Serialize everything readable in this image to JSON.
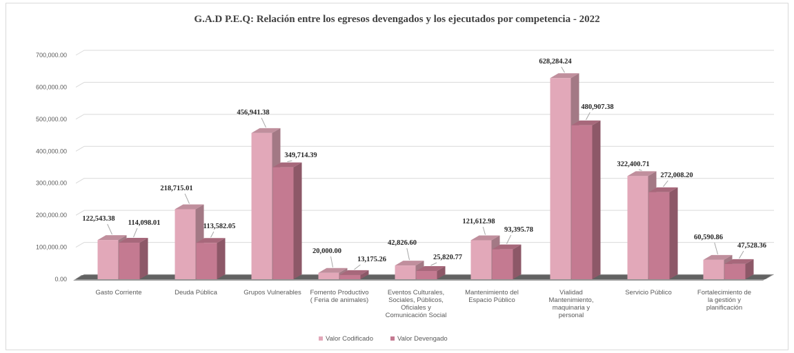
{
  "chart_data": {
    "type": "bar",
    "title": "G.A.D P.E.Q: Relación entre los egresos devengados y los ejecutados por competencia - 2022",
    "categories": [
      "Gasto Corriente",
      "Deuda Pública",
      "Grupos Vulnerables",
      "Fomento Productivo ( Feria de animales)",
      "Eventos Culturales, Sociales, Públicos, Oficiales y Comunicación Social",
      "Mantenimiento del Espacio Público",
      "Vialidad Mantenimiento, maquinaria y personal",
      "Servicio Público",
      "Fortalecimiento de la gestión y planificación"
    ],
    "category_lines": [
      [
        "Gasto Corriente"
      ],
      [
        "Deuda Pública"
      ],
      [
        "Grupos Vulnerables"
      ],
      [
        "Fomento Productivo",
        "( Feria de animales)"
      ],
      [
        "Eventos Culturales,",
        "Sociales, Públicos,",
        "Oficiales y",
        "Comunicación Social"
      ],
      [
        "Mantenimiento del",
        "Espacio Público"
      ],
      [
        "Vialidad",
        "Mantenimiento,",
        "maquinaria y",
        "personal"
      ],
      [
        "Servicio Público"
      ],
      [
        "Fortalecimiento de",
        "la gestión y",
        "planificación"
      ]
    ],
    "series": [
      {
        "name": "Valor Codificado",
        "color": "#e2a8b9",
        "values": [
          122543.38,
          218715.01,
          456941.38,
          20000.0,
          42826.6,
          121612.98,
          628284.24,
          322400.71,
          60590.86
        ],
        "labels": [
          "122,543.38",
          "218,715.01",
          "456,941.38",
          "20,000.00",
          "42,826.60",
          "121,612.98",
          "628,284.24",
          "322,400.71",
          "60,590.86"
        ]
      },
      {
        "name": "Valor Devengado",
        "color": "#c47a91",
        "values": [
          114098.01,
          113582.05,
          349714.39,
          13175.26,
          25820.77,
          93395.78,
          480907.38,
          272008.2,
          47528.36
        ],
        "labels": [
          "114,098.01",
          "113,582.05",
          "349,714.39",
          "13,175.26",
          "25,820.77",
          "93,395.78",
          "480,907.38",
          "272,008.20",
          "47,528.36"
        ]
      }
    ],
    "yticks": [
      "0.00",
      "100,000.00",
      "200,000.00",
      "300,000.00",
      "400,000.00",
      "500,000.00",
      "600,000.00",
      "700,000.00"
    ],
    "ylim": [
      0,
      700000
    ],
    "legend_position": "bottom",
    "grid": true
  }
}
